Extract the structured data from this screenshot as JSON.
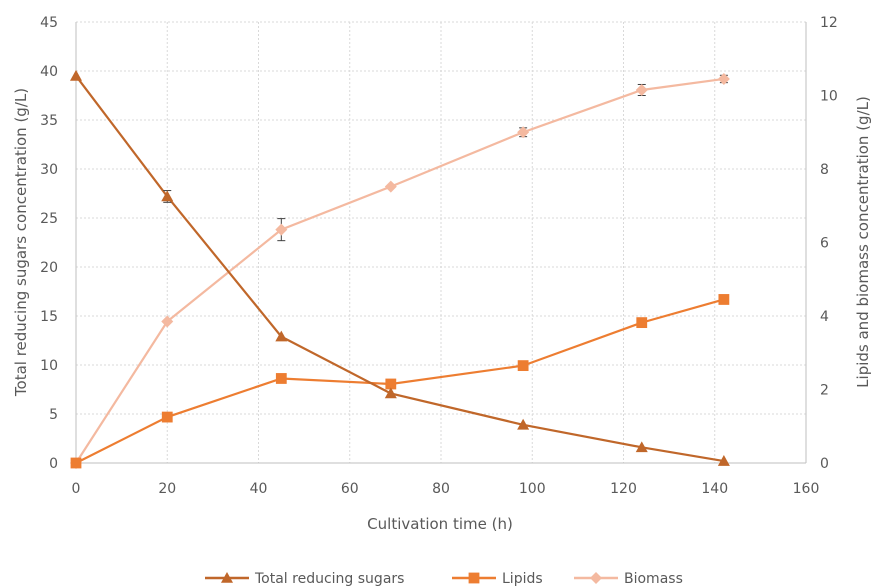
{
  "chart_data": {
    "type": "line",
    "xlabel": "Cultivation time (h)",
    "ylabel_left": "Total reducing sugars concentration (g/L)",
    "ylabel_right": "Lipids and biomass concentration (g/L)",
    "xlim": [
      0,
      160
    ],
    "xticks": [
      0,
      20,
      40,
      60,
      80,
      100,
      120,
      140,
      160
    ],
    "ylim_left": [
      0,
      45
    ],
    "yticks_left": [
      0,
      5,
      10,
      15,
      20,
      25,
      30,
      35,
      40,
      45
    ],
    "ylim_right": [
      0,
      12
    ],
    "yticks_right": [
      0,
      2,
      4,
      6,
      8,
      10,
      12
    ],
    "grid": true,
    "legend_position": "bottom",
    "series": [
      {
        "name": "Total reducing sugars",
        "axis": "left",
        "color": "#C0672A",
        "marker": "triangle",
        "x": [
          0,
          20,
          45,
          69,
          98,
          124,
          142
        ],
        "y": [
          39.5,
          27.2,
          12.9,
          7.1,
          3.9,
          1.6,
          0.2
        ],
        "error": [
          0,
          0.6,
          0,
          0,
          0,
          0,
          0
        ]
      },
      {
        "name": "Lipids",
        "axis": "right",
        "color": "#ED7D31",
        "marker": "square",
        "x": [
          0,
          20,
          45,
          69,
          98,
          124,
          142
        ],
        "y": [
          0,
          1.25,
          2.3,
          2.15,
          2.65,
          3.82,
          4.45
        ],
        "error": [
          0,
          0,
          0,
          0,
          0,
          0,
          0
        ]
      },
      {
        "name": "Biomass",
        "axis": "right",
        "color": "#F4B9A0",
        "marker": "diamond",
        "x": [
          0,
          20,
          45,
          69,
          98,
          124,
          142
        ],
        "y": [
          0,
          3.85,
          6.35,
          7.52,
          9.0,
          10.15,
          10.45
        ],
        "error": [
          0,
          0,
          0.3,
          0,
          0.12,
          0.15,
          0.1
        ]
      }
    ]
  }
}
